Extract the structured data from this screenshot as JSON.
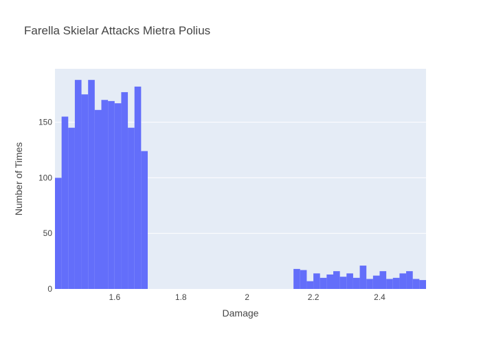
{
  "chart_data": {
    "type": "histogram",
    "title": "Farella Skielar Attacks Mietra Polius",
    "xlabel": "Damage",
    "ylabel": "Number of Times",
    "xlim": [
      1.42,
      2.54
    ],
    "ylim": [
      0,
      198
    ],
    "x_ticks": [
      1.6,
      1.8,
      2,
      2.2,
      2.4
    ],
    "x_tick_labels": [
      "1.6",
      "1.8",
      "2",
      "2.2",
      "2.4"
    ],
    "y_ticks": [
      0,
      50,
      100,
      150
    ],
    "y_tick_labels": [
      "0",
      "50",
      "100",
      "150"
    ],
    "bin_width": 0.02,
    "bins_start": [
      1.42,
      1.44,
      1.46,
      1.48,
      1.5,
      1.52,
      1.54,
      1.56,
      1.58,
      1.6,
      1.62,
      1.64,
      1.66,
      1.68,
      2.14,
      2.16,
      2.18,
      2.2,
      2.22,
      2.24,
      2.26,
      2.28,
      2.3,
      2.32,
      2.34,
      2.36,
      2.38,
      2.4,
      2.42,
      2.44,
      2.46,
      2.48,
      2.5,
      2.52
    ],
    "values": [
      100,
      155,
      145,
      188,
      175,
      188,
      161,
      170,
      169,
      167,
      177,
      145,
      182,
      124,
      18,
      17,
      7,
      14,
      10,
      13,
      16,
      11,
      14,
      10,
      21,
      9,
      12,
      16,
      9,
      10,
      14,
      16,
      9,
      8
    ],
    "bar_color": "#636efa",
    "plot_bg": "#e5ecf6",
    "grid": true
  }
}
